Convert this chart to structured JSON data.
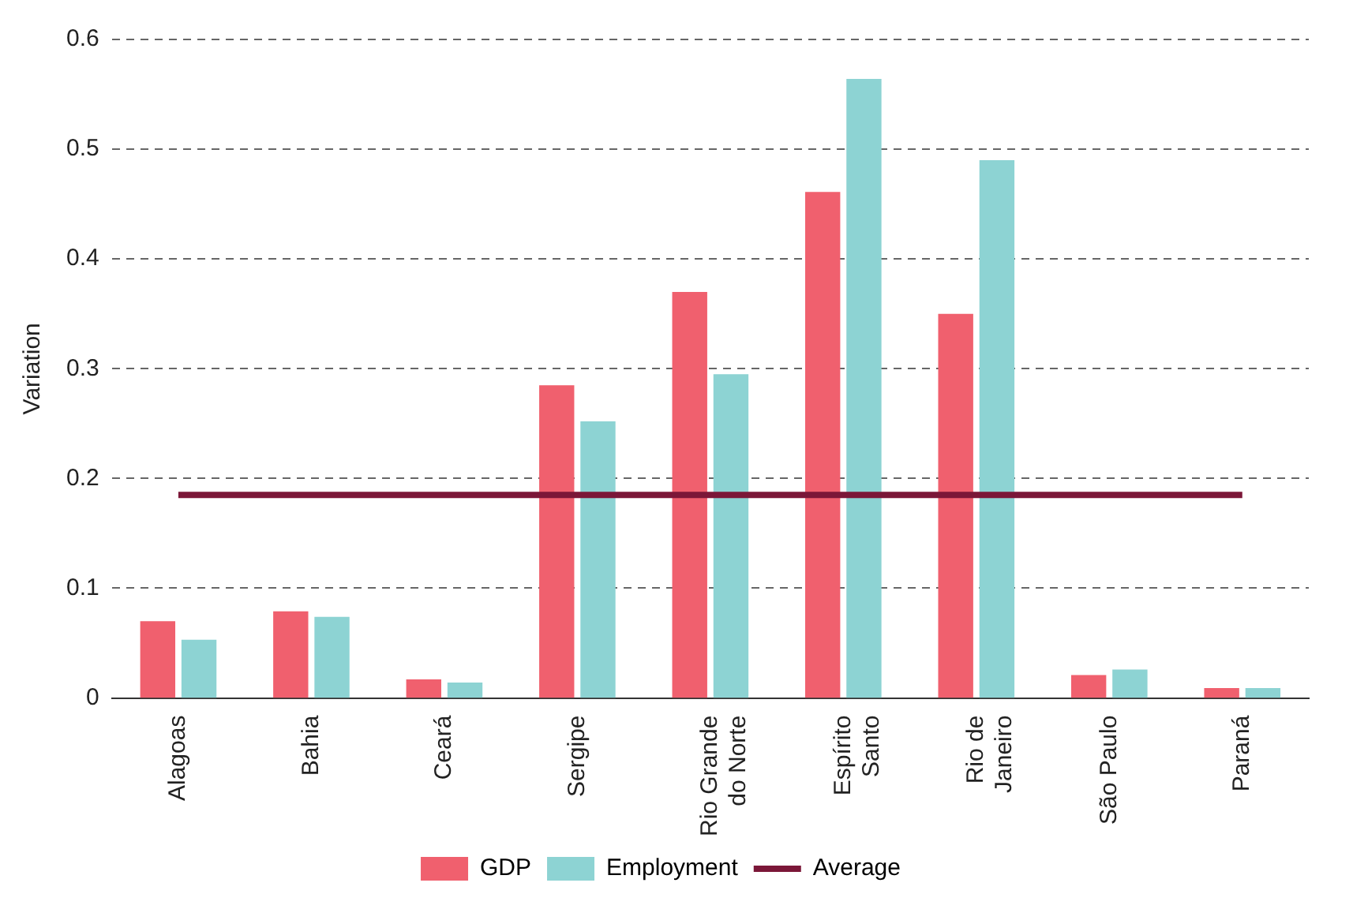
{
  "chart_data": {
    "type": "bar",
    "ylabel": "Variation",
    "categories": [
      "Alagoas",
      "Bahia",
      "Ceará",
      "Sergipe",
      "Rio Grande\ndo Norte",
      "Espírito\nSanto",
      "Rio de\nJaneiro",
      "São Paulo",
      "Paraná"
    ],
    "series": [
      {
        "name": "GDP",
        "color": "#f0606e",
        "values": [
          0.07,
          0.079,
          0.017,
          0.285,
          0.37,
          0.461,
          0.35,
          0.021,
          0.009
        ]
      },
      {
        "name": "Employment",
        "color": "#8dd3d3",
        "values": [
          0.053,
          0.074,
          0.014,
          0.252,
          0.295,
          0.564,
          0.49,
          0.026,
          0.009
        ]
      },
      {
        "name": "Average",
        "type": "line",
        "color": "#7b1738",
        "values": [
          0.185,
          0.185,
          0.185,
          0.185,
          0.185,
          0.185,
          0.185,
          0.185,
          0.185
        ]
      }
    ],
    "ylim": [
      0,
      0.6
    ],
    "yticks": [
      0,
      0.1,
      0.2,
      0.3,
      0.4,
      0.5,
      0.6
    ],
    "grid": "y",
    "legend": "bottom"
  }
}
